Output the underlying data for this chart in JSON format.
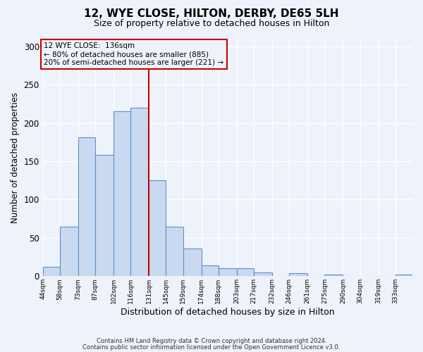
{
  "title": "12, WYE CLOSE, HILTON, DERBY, DE65 5LH",
  "subtitle": "Size of property relative to detached houses in Hilton",
  "xlabel": "Distribution of detached houses by size in Hilton",
  "ylabel": "Number of detached properties",
  "bin_labels": [
    "44sqm",
    "58sqm",
    "73sqm",
    "87sqm",
    "102sqm",
    "116sqm",
    "131sqm",
    "145sqm",
    "159sqm",
    "174sqm",
    "188sqm",
    "203sqm",
    "217sqm",
    "232sqm",
    "246sqm",
    "261sqm",
    "275sqm",
    "290sqm",
    "304sqm",
    "319sqm",
    "333sqm"
  ],
  "bar_heights": [
    12,
    65,
    181,
    158,
    215,
    220,
    125,
    65,
    36,
    14,
    10,
    10,
    5,
    0,
    4,
    0,
    2,
    0,
    0,
    0,
    2
  ],
  "bar_color": "#c9d9f0",
  "bar_edge_color": "#6090c8",
  "vline_x_index": 6,
  "vline_color": "#cc0000",
  "bin_edges_sqm": [
    44,
    58,
    73,
    87,
    102,
    116,
    131,
    145,
    159,
    174,
    188,
    203,
    217,
    232,
    246,
    261,
    275,
    290,
    304,
    319,
    333,
    347
  ],
  "annotation_title": "12 WYE CLOSE:  136sqm",
  "annotation_line1": "← 80% of detached houses are smaller (885)",
  "annotation_line2": "20% of semi-detached houses are larger (221) →",
  "annotation_box_color": "#cc0000",
  "ylim": [
    0,
    310
  ],
  "yticks": [
    0,
    50,
    100,
    150,
    200,
    250,
    300
  ],
  "footer1": "Contains HM Land Registry data © Crown copyright and database right 2024.",
  "footer2": "Contains public sector information licensed under the Open Government Licence v3.0.",
  "bg_color": "#eef2fb"
}
